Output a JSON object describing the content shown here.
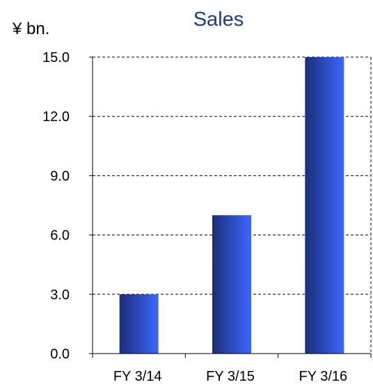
{
  "colors": {
    "title": "#1f3d7a",
    "bar_dark": "#1c2e78",
    "bar_light": "#3b67ff",
    "grid": "#000000"
  },
  "chart_data": {
    "type": "bar",
    "title": "Sales",
    "ylabel": "¥ bn.",
    "xlabel": "",
    "categories": [
      "FY 3/14",
      "FY 3/15",
      "FY 3/16"
    ],
    "values": [
      3.0,
      7.0,
      15.0
    ],
    "ylim": [
      0,
      15
    ],
    "yticks": [
      "0.0",
      "3.0",
      "6.0",
      "9.0",
      "12.0",
      "15.0"
    ],
    "grid": true,
    "grid_style": "dashed",
    "legend": "none"
  }
}
